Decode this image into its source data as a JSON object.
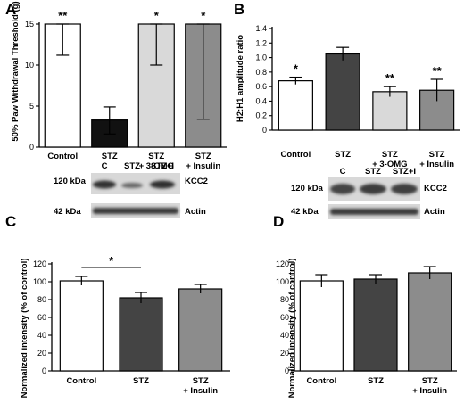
{
  "colors": {
    "white": "#ffffff",
    "black": "#111111",
    "darkgray": "#444444",
    "lightgray": "#d9d9d9",
    "midgray": "#8c8c8c",
    "blot_bg": "#d6d6d6"
  },
  "chart_data": [
    {
      "panel": "A",
      "type": "bar",
      "ylabel": "50% Paw Withdrawal Threshold (g)",
      "ylim": [
        0,
        15
      ],
      "yticks": [
        "0",
        "5",
        "10",
        "15"
      ],
      "categories": [
        "Control",
        "STZ",
        "STZ + 3-OMG",
        "STZ + Insulin"
      ],
      "values": [
        15,
        3.3,
        15,
        15
      ],
      "error_low": [
        11.2,
        1.6,
        10.0,
        3.4
      ],
      "error_high": [
        15,
        4.9,
        15,
        15
      ],
      "significance": [
        "**",
        "",
        "*",
        "*"
      ],
      "bar_colors": [
        "white",
        "black",
        "lightgray",
        "midgray"
      ]
    },
    {
      "panel": "B",
      "type": "bar",
      "ylabel": "H2:H1 amplitude ratio",
      "ylim": [
        0,
        1.4
      ],
      "yticks": [
        "0",
        "0.2",
        "0.4",
        "0.6",
        "0.8",
        "1.0",
        "1.2",
        "1.4"
      ],
      "categories": [
        "Control",
        "STZ",
        "STZ + 3-OMG",
        "STZ + Insulin"
      ],
      "values": [
        0.68,
        1.05,
        0.53,
        0.55
      ],
      "errors": [
        0.05,
        0.09,
        0.07,
        0.15
      ],
      "significance": [
        "*",
        "",
        "**",
        "**"
      ],
      "bar_colors": [
        "white",
        "darkgray",
        "lightgray",
        "midgray"
      ]
    },
    {
      "panel": "C",
      "type": "bar",
      "ylabel": "Normalized intensity (% of control)",
      "ylim": [
        0,
        120
      ],
      "yticks": [
        "0",
        "20",
        "40",
        "60",
        "80",
        "100",
        "120"
      ],
      "categories": [
        "Control",
        "STZ",
        "STZ + Insulin"
      ],
      "values": [
        101,
        82,
        92
      ],
      "errors": [
        5,
        6,
        5
      ],
      "bracket": {
        "from": 0,
        "to": 1,
        "label": "*"
      },
      "bar_colors": [
        "white",
        "darkgray",
        "midgray"
      ]
    },
    {
      "panel": "D",
      "type": "bar",
      "ylabel": "Normalized intensity (% of control)",
      "ylim": [
        0,
        120
      ],
      "yticks": [
        "0",
        "20",
        "40",
        "60",
        "80",
        "100",
        "120"
      ],
      "categories": [
        "Control",
        "STZ",
        "STZ + Insulin"
      ],
      "values": [
        101,
        103,
        110
      ],
      "errors": [
        7,
        5,
        7
      ],
      "bar_colors": [
        "white",
        "darkgray",
        "midgray"
      ]
    }
  ],
  "blots": {
    "C": {
      "lanes": [
        "C",
        "STZ",
        "STZ+I"
      ],
      "rows": [
        {
          "size": "120 kDa",
          "protein": "KCC2"
        },
        {
          "size": "42 kDa",
          "protein": "Actin"
        }
      ]
    },
    "D": {
      "lanes": [
        "C",
        "STZ",
        "STZ+I"
      ],
      "rows": [
        {
          "size": "120 kDa",
          "protein": "KCC2"
        },
        {
          "size": "42 kDa",
          "protein": "Actin"
        }
      ]
    }
  }
}
